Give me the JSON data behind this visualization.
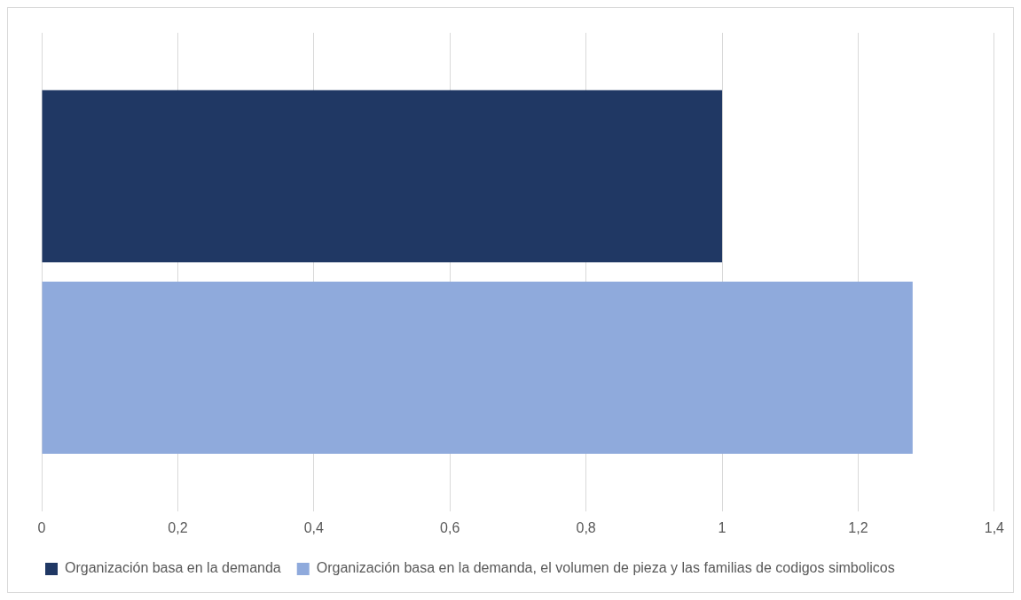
{
  "chart_data": {
    "type": "bar",
    "orientation": "horizontal",
    "categories": [
      null
    ],
    "series": [
      {
        "name": "Organización basa en la demanda",
        "color": "#203864",
        "values": [
          1
        ]
      },
      {
        "name": "Organización basa en la demanda, el volumen de pieza y las familias de codigos simbolicos",
        "color": "#8faadc",
        "values": [
          1.28
        ]
      }
    ],
    "xlim": [
      0,
      1.4
    ],
    "xticks": [
      {
        "value": 0,
        "label": "0"
      },
      {
        "value": 0.2,
        "label": "0,2"
      },
      {
        "value": 0.4,
        "label": "0,4"
      },
      {
        "value": 0.6,
        "label": "0,6"
      },
      {
        "value": 0.8,
        "label": "0,8"
      },
      {
        "value": 1,
        "label": "1"
      },
      {
        "value": 1.2,
        "label": "1,2"
      },
      {
        "value": 1.4,
        "label": "1,4"
      }
    ],
    "grid": "x",
    "legend": "bottom"
  }
}
